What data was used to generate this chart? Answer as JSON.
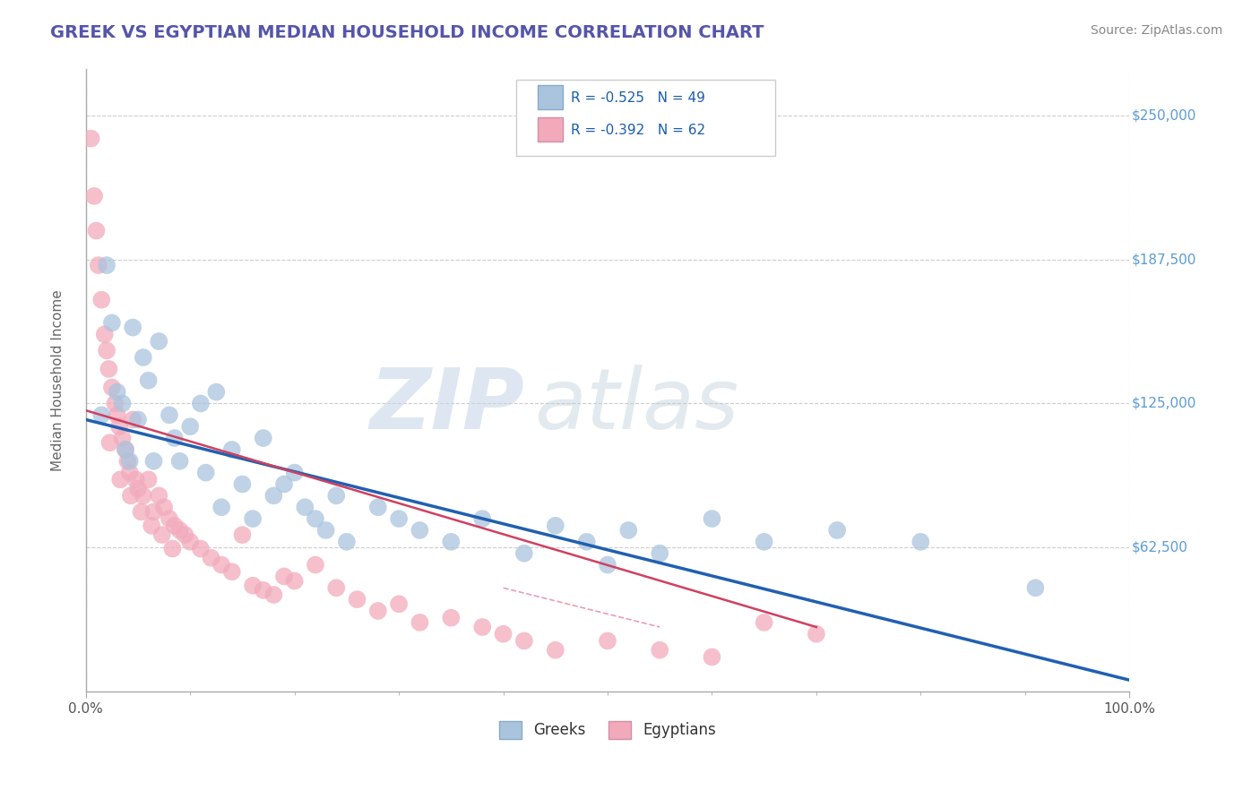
{
  "title": "GREEK VS EGYPTIAN MEDIAN HOUSEHOLD INCOME CORRELATION CHART",
  "source_text": "Source: ZipAtlas.com",
  "ylabel": "Median Household Income",
  "xlim": [
    0,
    100
  ],
  "ylim": [
    0,
    270000
  ],
  "yticks": [
    0,
    62500,
    125000,
    187500,
    250000
  ],
  "ytick_labels": [
    "",
    "$62,500",
    "$125,000",
    "$187,500",
    "$250,000"
  ],
  "xtick_labels": [
    "0.0%",
    "100.0%"
  ],
  "watermark_ZIP": "ZIP",
  "watermark_atlas": "atlas",
  "legend_greek_R": "R = -0.525",
  "legend_greek_N": "N = 49",
  "legend_egypt_R": "R = -0.392",
  "legend_egypt_N": "N = 62",
  "greek_color": "#aac4de",
  "egypt_color": "#f2aabb",
  "greek_line_color": "#2060b0",
  "egypt_line_color": "#d04060",
  "title_color": "#5555aa",
  "axis_label_color": "#666666",
  "tick_color_right": "#5b9bd5",
  "background_color": "#ffffff",
  "grid_color": "#cccccc",
  "greeks_x": [
    2.0,
    2.5,
    3.0,
    3.5,
    3.8,
    4.2,
    4.5,
    5.0,
    5.5,
    6.0,
    6.5,
    7.0,
    8.0,
    8.5,
    9.0,
    10.0,
    11.0,
    11.5,
    12.5,
    13.0,
    14.0,
    15.0,
    16.0,
    17.0,
    18.0,
    19.0,
    20.0,
    21.0,
    22.0,
    23.0,
    24.0,
    25.0,
    28.0,
    30.0,
    32.0,
    35.0,
    38.0,
    42.0,
    45.0,
    48.0,
    50.0,
    52.0,
    55.0,
    60.0,
    65.0,
    72.0,
    80.0,
    91.0,
    1.5
  ],
  "greeks_y": [
    185000,
    160000,
    130000,
    125000,
    105000,
    100000,
    158000,
    118000,
    145000,
    135000,
    100000,
    152000,
    120000,
    110000,
    100000,
    115000,
    125000,
    95000,
    130000,
    80000,
    105000,
    90000,
    75000,
    110000,
    85000,
    90000,
    95000,
    80000,
    75000,
    70000,
    85000,
    65000,
    80000,
    75000,
    70000,
    65000,
    75000,
    60000,
    72000,
    65000,
    55000,
    70000,
    60000,
    75000,
    65000,
    70000,
    65000,
    45000,
    120000
  ],
  "egyptians_x": [
    0.5,
    0.8,
    1.0,
    1.2,
    1.5,
    1.8,
    2.0,
    2.2,
    2.5,
    2.8,
    3.0,
    3.2,
    3.5,
    3.8,
    4.0,
    4.2,
    4.5,
    4.8,
    5.0,
    5.5,
    6.0,
    6.5,
    7.0,
    7.5,
    8.0,
    8.5,
    9.0,
    9.5,
    10.0,
    11.0,
    12.0,
    13.0,
    14.0,
    15.0,
    16.0,
    17.0,
    18.0,
    19.0,
    20.0,
    22.0,
    24.0,
    26.0,
    28.0,
    30.0,
    32.0,
    35.0,
    38.0,
    40.0,
    42.0,
    45.0,
    50.0,
    55.0,
    60.0,
    65.0,
    70.0,
    2.3,
    3.3,
    4.3,
    5.3,
    6.3,
    7.3,
    8.3
  ],
  "egyptians_y": [
    240000,
    215000,
    200000,
    185000,
    170000,
    155000,
    148000,
    140000,
    132000,
    125000,
    120000,
    115000,
    110000,
    105000,
    100000,
    95000,
    118000,
    92000,
    88000,
    85000,
    92000,
    78000,
    85000,
    80000,
    75000,
    72000,
    70000,
    68000,
    65000,
    62000,
    58000,
    55000,
    52000,
    68000,
    46000,
    44000,
    42000,
    50000,
    48000,
    55000,
    45000,
    40000,
    35000,
    38000,
    30000,
    32000,
    28000,
    25000,
    22000,
    18000,
    22000,
    18000,
    15000,
    30000,
    25000,
    108000,
    92000,
    85000,
    78000,
    72000,
    68000,
    62000
  ],
  "greek_line_x": [
    0,
    100
  ],
  "greek_line_y": [
    118000,
    5000
  ],
  "egypt_line_x": [
    0,
    70
  ],
  "egypt_line_y": [
    122000,
    28000
  ]
}
